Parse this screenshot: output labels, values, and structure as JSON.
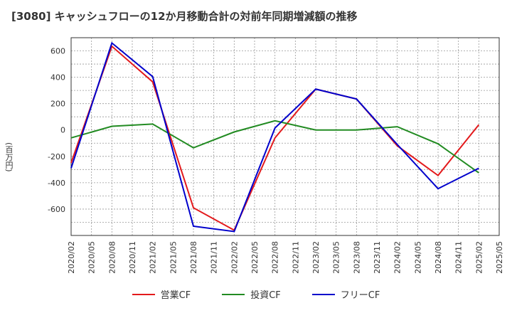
{
  "chart_data": {
    "type": "line",
    "title": "[3080]  キャッシュフローの12か月移動合計の対前年同期増減額の推移",
    "ylabel": "(百万円)",
    "xlabel": "",
    "x": [
      "2020/02",
      "2020/05",
      "2020/08",
      "2020/11",
      "2021/02",
      "2021/05",
      "2021/08",
      "2021/11",
      "2022/02",
      "2022/05",
      "2022/08",
      "2022/11",
      "2023/02",
      "2023/05",
      "2023/08",
      "2023/11",
      "2024/02",
      "2024/05",
      "2024/08",
      "2024/11",
      "2025/02",
      "2025/05"
    ],
    "ylim": [
      -800,
      700
    ],
    "yticks": [
      600,
      400,
      200,
      0,
      -200,
      -400,
      -600
    ],
    "grid": true,
    "legend_position": "bottom",
    "series": [
      {
        "name": "営業CF",
        "color": "#e31a1c",
        "points": [
          [
            "2020/02",
            -250
          ],
          [
            "2020/08",
            635
          ],
          [
            "2021/02",
            365
          ],
          [
            "2021/08",
            -590
          ],
          [
            "2022/02",
            -760
          ],
          [
            "2022/08",
            -60
          ],
          [
            "2023/02",
            310
          ],
          [
            "2023/08",
            235
          ],
          [
            "2024/02",
            -120
          ],
          [
            "2024/08",
            -345
          ],
          [
            "2025/02",
            40
          ]
        ]
      },
      {
        "name": "投資CF",
        "color": "#228b22",
        "points": [
          [
            "2020/02",
            -60
          ],
          [
            "2020/08",
            28
          ],
          [
            "2021/02",
            45
          ],
          [
            "2021/08",
            -135
          ],
          [
            "2022/02",
            -15
          ],
          [
            "2022/08",
            70
          ],
          [
            "2023/02",
            0
          ],
          [
            "2023/08",
            0
          ],
          [
            "2024/02",
            25
          ],
          [
            "2024/08",
            -105
          ],
          [
            "2025/02",
            -325
          ]
        ]
      },
      {
        "name": "フリーCF",
        "color": "#0000cc",
        "points": [
          [
            "2020/02",
            -290
          ],
          [
            "2020/08",
            660
          ],
          [
            "2021/02",
            405
          ],
          [
            "2021/08",
            -730
          ],
          [
            "2022/02",
            -770
          ],
          [
            "2022/08",
            15
          ],
          [
            "2023/02",
            310
          ],
          [
            "2023/08",
            235
          ],
          [
            "2024/02",
            -110
          ],
          [
            "2024/08",
            -445
          ],
          [
            "2025/02",
            -290
          ]
        ]
      }
    ]
  }
}
